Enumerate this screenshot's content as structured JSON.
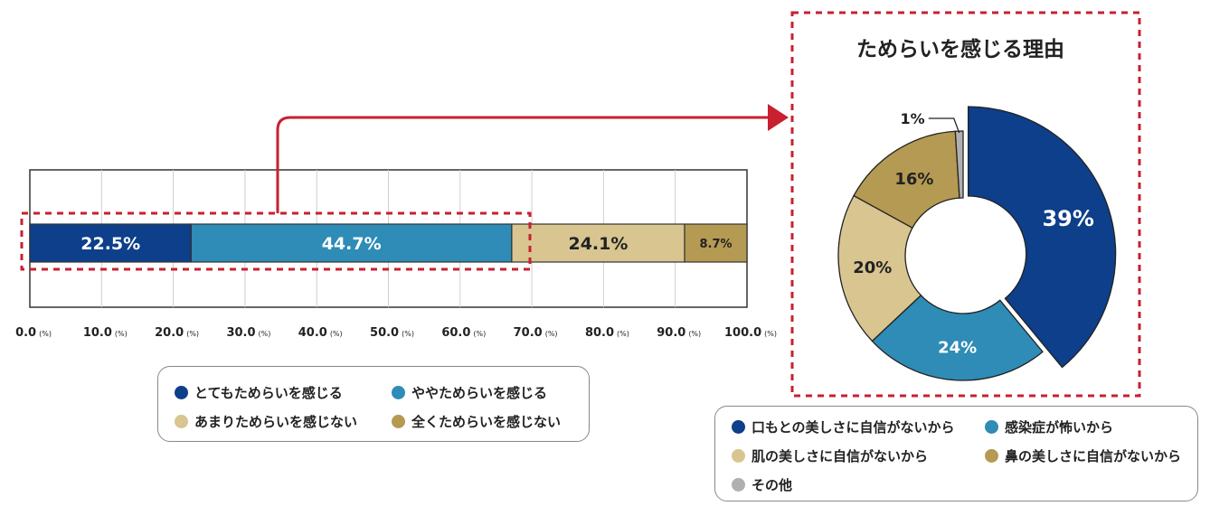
{
  "colors": {
    "dark_blue": "#0d3f8a",
    "teal": "#2e8cb6",
    "light_tan": "#d8c590",
    "olive": "#b49a52",
    "gray": "#b0b0b0",
    "red_dashed": "#c8202f",
    "arrow": "#c8202f"
  },
  "chart_data": [
    {
      "type": "bar",
      "orientation": "horizontal-stacked",
      "categories": [
        ""
      ],
      "series": [
        {
          "name": "とてもためらいを感じる",
          "values": [
            22.5
          ],
          "label": "22.5%",
          "color": "#0d3f8a"
        },
        {
          "name": "ややためらいを感じる",
          "values": [
            44.7
          ],
          "label": "44.7%",
          "color": "#2e8cb6"
        },
        {
          "name": "あまりためらいを感じない",
          "values": [
            24.1
          ],
          "label": "24.1%",
          "color": "#d8c590"
        },
        {
          "name": "全くためらいを感じない",
          "values": [
            8.7
          ],
          "label": "8.7%",
          "color": "#b49a52"
        }
      ],
      "xlim": [
        0,
        100
      ],
      "x_ticks": [
        {
          "value": "0.0",
          "unit": "(%)"
        },
        {
          "value": "10.0",
          "unit": "(%)"
        },
        {
          "value": "20.0",
          "unit": "(%)"
        },
        {
          "value": "30.0",
          "unit": "(%)"
        },
        {
          "value": "40.0",
          "unit": "(%)"
        },
        {
          "value": "50.0",
          "unit": "(%)"
        },
        {
          "value": "60.0",
          "unit": "(%)"
        },
        {
          "value": "70.0",
          "unit": "(%)"
        },
        {
          "value": "80.0",
          "unit": "(%)"
        },
        {
          "value": "90.0",
          "unit": "(%)"
        },
        {
          "value": "100.0",
          "unit": "(%)"
        }
      ],
      "grid": true,
      "legend_position": "bottom"
    },
    {
      "type": "pie",
      "style": "donut",
      "title": "ためらいを感じる理由",
      "slices": [
        {
          "name": "口もとの美しさに自信がないから",
          "value": 39,
          "label": "39%",
          "color": "#0d3f8a",
          "exploded": true
        },
        {
          "name": "感染症が怖いから",
          "value": 24,
          "label": "24%",
          "color": "#2e8cb6"
        },
        {
          "name": "肌の美しさに自信がないから",
          "value": 20,
          "label": "20%",
          "color": "#d8c590"
        },
        {
          "name": "鼻の美しさに自信がないから",
          "value": 16,
          "label": "16%",
          "color": "#b49a52"
        },
        {
          "name": "その他",
          "value": 1,
          "label": "1%",
          "color": "#b0b0b0"
        }
      ],
      "legend_position": "bottom"
    }
  ],
  "bar_legend": [
    {
      "label": "とてもためらいを感じる",
      "color": "#0d3f8a"
    },
    {
      "label": "ややためらいを感じる",
      "color": "#2e8cb6"
    },
    {
      "label": "あまりためらいを感じない",
      "color": "#d8c590"
    },
    {
      "label": "全くためらいを感じない",
      "color": "#b49a52"
    }
  ],
  "pie_legend": [
    {
      "label": "口もとの美しさに自信がないから",
      "color": "#0d3f8a"
    },
    {
      "label": "感染症が怖いから",
      "color": "#2e8cb6"
    },
    {
      "label": "肌の美しさに自信がないから",
      "color": "#d8c590"
    },
    {
      "label": "鼻の美しさに自信がないから",
      "color": "#b49a52"
    },
    {
      "label": "その他",
      "color": "#b0b0b0"
    }
  ]
}
